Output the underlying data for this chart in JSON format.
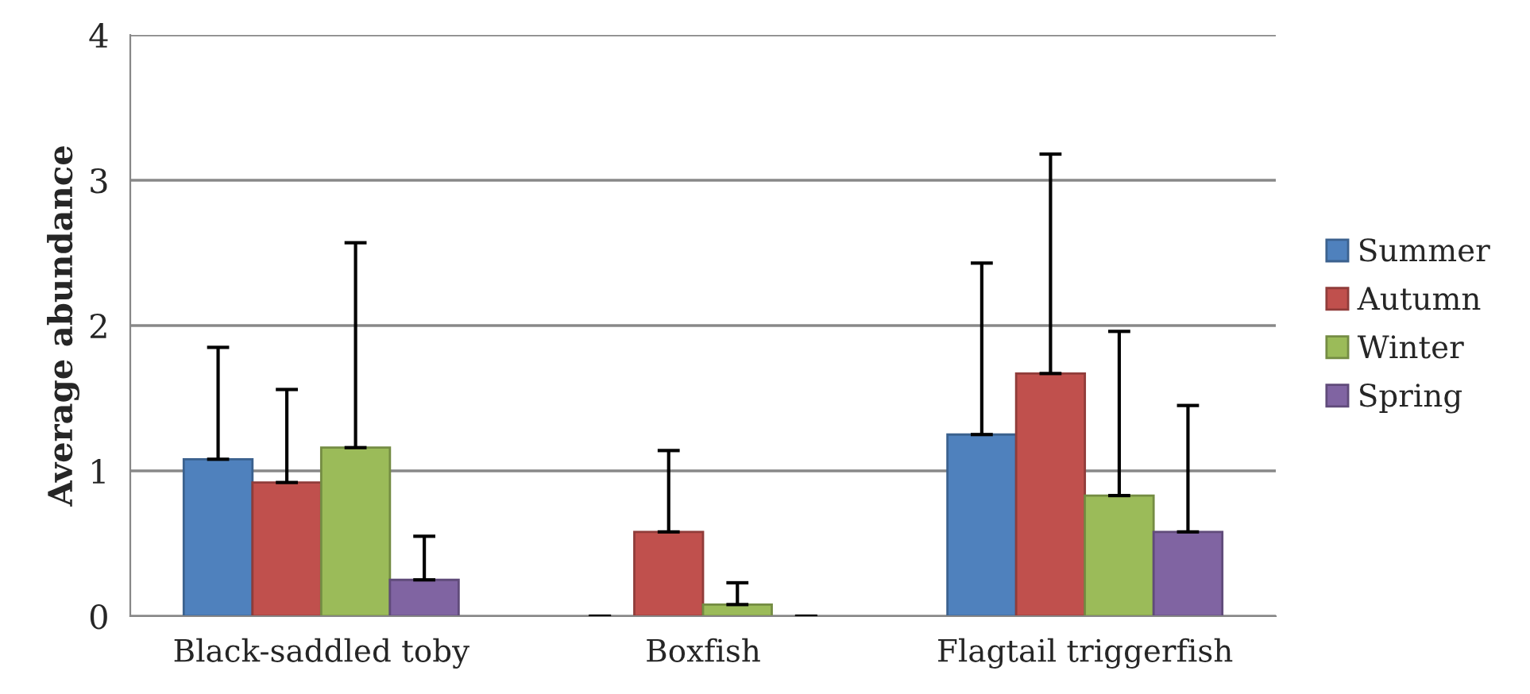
{
  "chart_data": {
    "type": "bar",
    "ylabel": "Average abundance",
    "categories": [
      "Black-saddled toby",
      "Boxfish",
      "Flagtail triggerfish"
    ],
    "series": [
      {
        "name": "Summer",
        "color": "#4f81bd",
        "values": [
          1.08,
          0,
          1.25
        ],
        "errors": [
          [
            1.08,
            1.85
          ],
          [
            0,
            0
          ],
          [
            1.25,
            2.43
          ]
        ]
      },
      {
        "name": "Autumn",
        "color": "#c0504d",
        "values": [
          0.92,
          0.58,
          1.67
        ],
        "errors": [
          [
            0.92,
            1.56
          ],
          [
            0.58,
            1.14
          ],
          [
            1.67,
            3.18
          ]
        ]
      },
      {
        "name": "Winter",
        "color": "#9bbb59",
        "values": [
          1.16,
          0.08,
          0.83
        ],
        "errors": [
          [
            1.16,
            2.57
          ],
          [
            0.08,
            0.23
          ],
          [
            0.83,
            1.96
          ]
        ]
      },
      {
        "name": "Spring",
        "color": "#8064a2",
        "values": [
          0.25,
          0,
          0.58
        ],
        "errors": [
          [
            0.25,
            0.55
          ],
          [
            0,
            0
          ],
          [
            0.58,
            1.45
          ]
        ]
      }
    ],
    "ylim": [
      0,
      4
    ],
    "yticks": [
      0,
      1,
      2,
      3,
      4
    ],
    "grid": "y",
    "legend": "right"
  }
}
